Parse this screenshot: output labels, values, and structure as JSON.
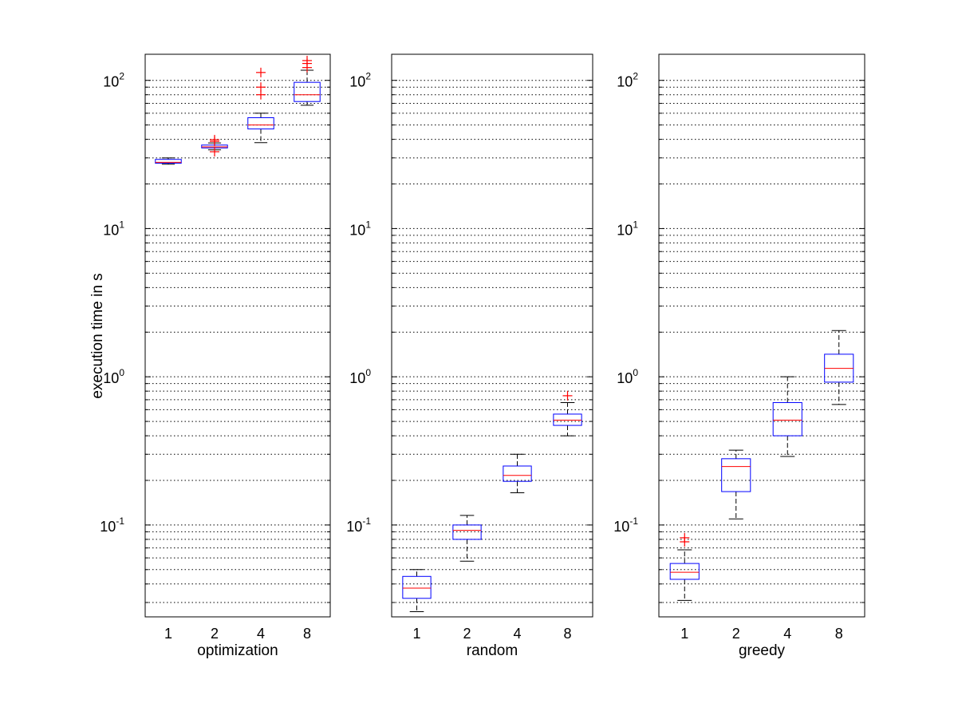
{
  "chart_data": {
    "type": "box",
    "ylabel": "execution time in s",
    "yscale": "log",
    "ylim": [
      0.024,
      150
    ],
    "y_ticks": [
      {
        "value": 0.1,
        "base": "10",
        "exp": "-1"
      },
      {
        "value": 1,
        "base": "10",
        "exp": "0"
      },
      {
        "value": 10,
        "base": "10",
        "exp": "1"
      },
      {
        "value": 100,
        "base": "10",
        "exp": "2"
      }
    ],
    "grid": "y minor+major, dotted",
    "colors": {
      "box": "#0000ff",
      "median": "#ff0000",
      "outlier": "#ff0000",
      "whisker": "#000000",
      "grid": "#000000"
    },
    "categories": [
      "1",
      "2",
      "4",
      "8"
    ],
    "panels": [
      {
        "name": "optimization",
        "xlabel": "optimization",
        "boxes": [
          {
            "category": "1",
            "whisker_low": 27.2,
            "q1": 27.6,
            "median": 28.0,
            "q3": 29.3,
            "whisker_high": 30.0,
            "outliers": []
          },
          {
            "category": "2",
            "whisker_low": 34.0,
            "q1": 35.0,
            "median": 35.6,
            "q3": 36.6,
            "whisker_high": 37.8,
            "outliers": [
              33.0,
              38.8,
              39.8
            ]
          },
          {
            "category": "4",
            "whisker_low": 38.0,
            "q1": 47.0,
            "median": 50.0,
            "q3": 56.0,
            "whisker_high": 60.0,
            "outliers": [
              80.0,
              90.0,
              113.0
            ]
          },
          {
            "category": "8",
            "whisker_low": 68.0,
            "q1": 72.0,
            "median": 80.0,
            "q3": 97.0,
            "whisker_high": 117.0,
            "outliers": [
              122.0,
              130.0,
              136.0
            ]
          }
        ]
      },
      {
        "name": "random",
        "xlabel": "random",
        "boxes": [
          {
            "category": "1",
            "whisker_low": 0.026,
            "q1": 0.032,
            "median": 0.0375,
            "q3": 0.045,
            "whisker_high": 0.05,
            "outliers": []
          },
          {
            "category": "2",
            "whisker_low": 0.057,
            "q1": 0.08,
            "median": 0.092,
            "q3": 0.1,
            "whisker_high": 0.116,
            "outliers": []
          },
          {
            "category": "4",
            "whisker_low": 0.165,
            "q1": 0.197,
            "median": 0.216,
            "q3": 0.25,
            "whisker_high": 0.3,
            "outliers": []
          },
          {
            "category": "8",
            "whisker_low": 0.4,
            "q1": 0.47,
            "median": 0.51,
            "q3": 0.56,
            "whisker_high": 0.67,
            "outliers": [
              0.745
            ]
          }
        ]
      },
      {
        "name": "greedy",
        "xlabel": "greedy",
        "boxes": [
          {
            "category": "1",
            "whisker_low": 0.031,
            "q1": 0.043,
            "median": 0.048,
            "q3": 0.055,
            "whisker_high": 0.068,
            "outliers": [
              0.077,
              0.082
            ]
          },
          {
            "category": "2",
            "whisker_low": 0.11,
            "q1": 0.168,
            "median": 0.248,
            "q3": 0.28,
            "whisker_high": 0.32,
            "outliers": []
          },
          {
            "category": "4",
            "whisker_low": 0.29,
            "q1": 0.4,
            "median": 0.51,
            "q3": 0.67,
            "whisker_high": 1.0,
            "outliers": []
          },
          {
            "category": "8",
            "whisker_low": 0.65,
            "q1": 0.92,
            "median": 1.14,
            "q3": 1.42,
            "whisker_high": 2.05,
            "outliers": []
          }
        ]
      }
    ]
  }
}
